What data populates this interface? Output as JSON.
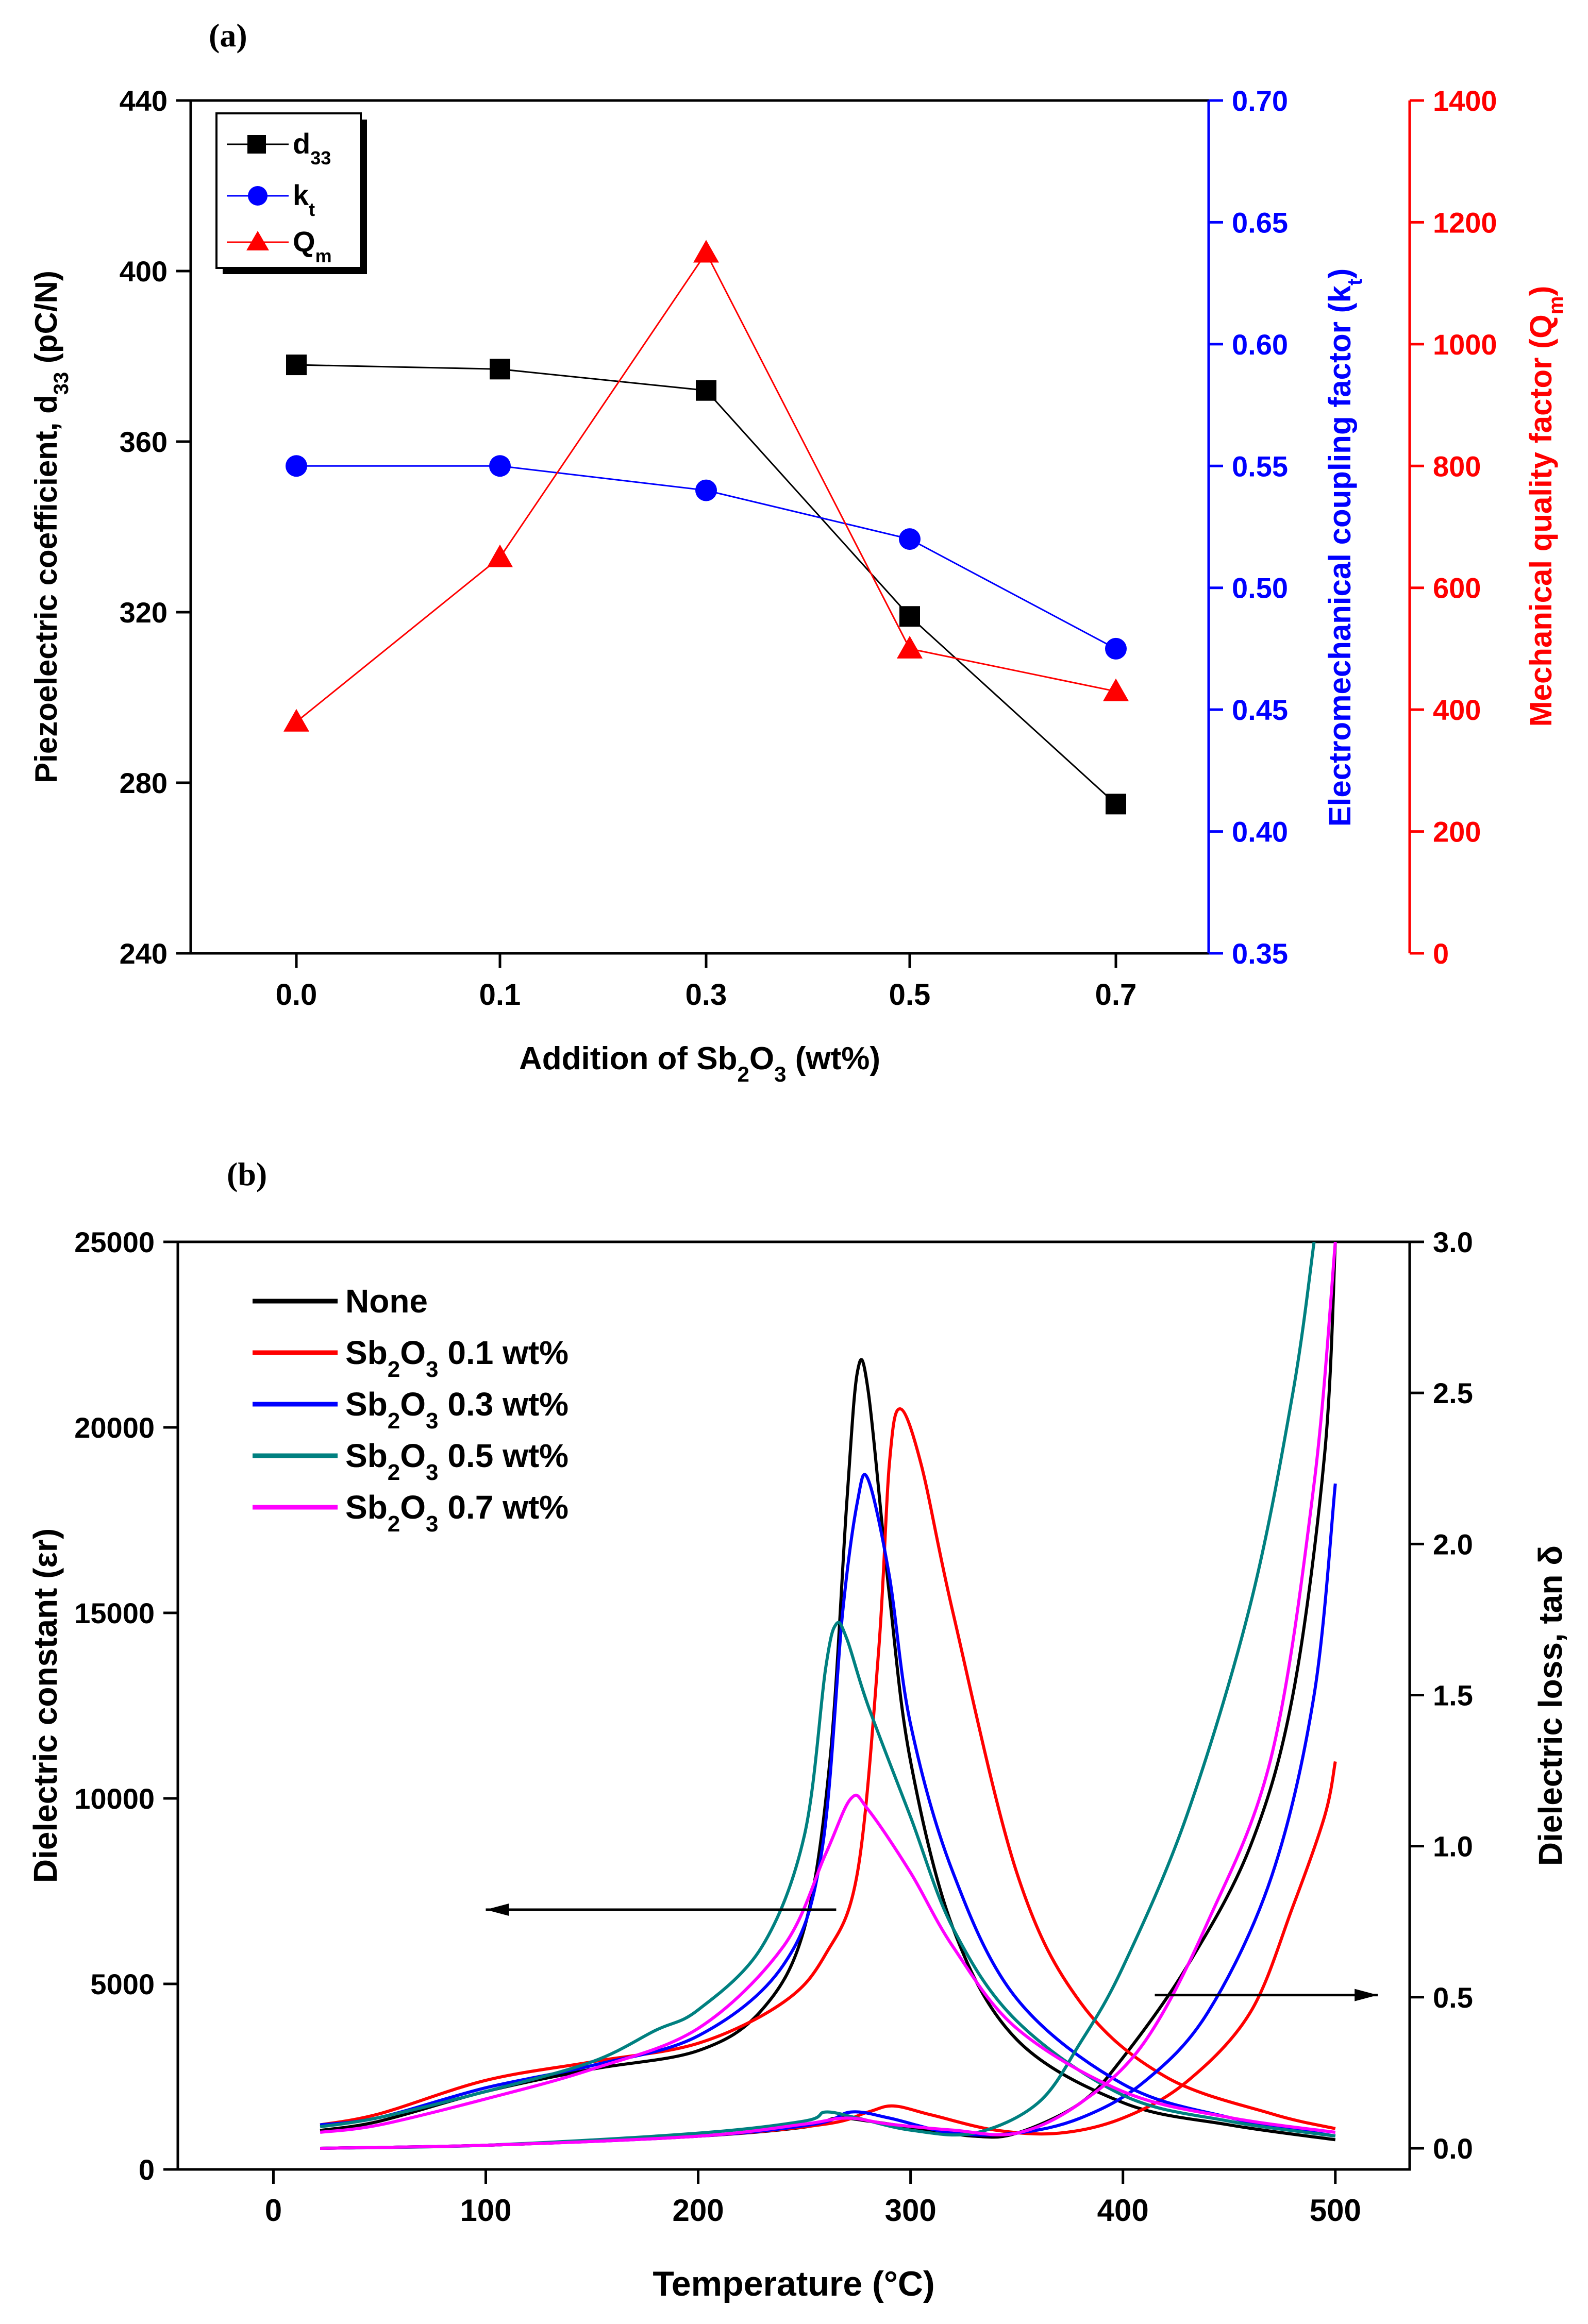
{
  "chart_data": [
    {
      "panel_label": "(a)",
      "type": "line",
      "xlabel": "Addition of Sb2O3 (wt%)",
      "x_tick_labels": [
        "0.0",
        "0.1",
        "0.3",
        "0.5",
        "0.7"
      ],
      "categories": [
        "0.0",
        "0.1",
        "0.3",
        "0.5",
        "0.7"
      ],
      "axes": {
        "left": {
          "label": "Piezoelectric coefficient, d33 (pC/N)",
          "range": [
            240,
            440
          ],
          "ticks": [
            240,
            280,
            320,
            360,
            400,
            440
          ],
          "color": "#000000"
        },
        "right1": {
          "label": "Electromechanical coupling factor (kt)",
          "range": [
            0.35,
            0.7
          ],
          "ticks": [
            "0.35",
            "0.40",
            "0.45",
            "0.50",
            "0.55",
            "0.60",
            "0.65",
            "0.70"
          ],
          "color": "#0000ff"
        },
        "right2": {
          "label": "Mechanical quality factor (Qm)",
          "range": [
            0,
            1400
          ],
          "ticks": [
            0,
            200,
            400,
            600,
            800,
            1000,
            1200,
            1400
          ],
          "color": "#ff0000"
        }
      },
      "series": [
        {
          "name": "d33",
          "axis": "left",
          "marker": "square",
          "color": "#000000",
          "values": [
            378,
            377,
            372,
            319,
            275
          ]
        },
        {
          "name": "kt",
          "axis": "right1",
          "marker": "circle",
          "color": "#0000ff",
          "values": [
            0.55,
            0.55,
            0.54,
            0.52,
            0.475
          ]
        },
        {
          "name": "Qm",
          "axis": "right2",
          "marker": "triangle",
          "color": "#ff0000",
          "values": [
            380,
            650,
            1150,
            500,
            430
          ]
        }
      ],
      "legend": {
        "position": "top-left",
        "entries": [
          "d33",
          "kt",
          "Qm"
        ]
      }
    },
    {
      "panel_label": "(b)",
      "type": "line",
      "xlabel": "Temperature (°C)",
      "ylabel": "Dielectric constant (εr)",
      "y2label": "Dielectric loss, tan δ",
      "xlim": [
        -45,
        535
      ],
      "ylim": [
        0,
        25000
      ],
      "y2lim": [
        -0.07,
        3.0
      ],
      "x_ticks": [
        0,
        100,
        200,
        300,
        400,
        500
      ],
      "y_ticks": [
        0,
        5000,
        10000,
        15000,
        20000,
        25000
      ],
      "y2_ticks": [
        "0.0",
        "0.5",
        "1.0",
        "1.5",
        "2.0",
        "2.5",
        "3.0"
      ],
      "legend": {
        "position": "top-left"
      },
      "series": [
        {
          "name": "None",
          "sub": "",
          "label_tail": "",
          "color": "#000000",
          "eps": [
            [
              22,
              1050
            ],
            [
              50,
              1300
            ],
            [
              100,
              2100
            ],
            [
              150,
              2700
            ],
            [
              200,
              3200
            ],
            [
              230,
              4300
            ],
            [
              250,
              6500
            ],
            [
              262,
              11000
            ],
            [
              270,
              18000
            ],
            [
              275,
              21500
            ],
            [
              280,
              21000
            ],
            [
              290,
              15500
            ],
            [
              300,
              11000
            ],
            [
              320,
              6500
            ],
            [
              350,
              3500
            ],
            [
              400,
              1800
            ],
            [
              450,
              1200
            ],
            [
              500,
              800
            ]
          ],
          "tan": [
            [
              22,
              0.0
            ],
            [
              100,
              0.01
            ],
            [
              200,
              0.04
            ],
            [
              250,
              0.07
            ],
            [
              265,
              0.1
            ],
            [
              280,
              0.09
            ],
            [
              300,
              0.07
            ],
            [
              330,
              0.04
            ],
            [
              350,
              0.05
            ],
            [
              380,
              0.15
            ],
            [
              400,
              0.3
            ],
            [
              430,
              0.6
            ],
            [
              460,
              1.0
            ],
            [
              480,
              1.5
            ],
            [
              495,
              2.3
            ],
            [
              500,
              3.0
            ]
          ]
        },
        {
          "name": "Sb",
          "sub": "2",
          "label_tail": "O",
          "sub2": "3",
          "wt": " 0.1 wt%",
          "color": "#ff0000",
          "eps": [
            [
              22,
              1200
            ],
            [
              50,
              1500
            ],
            [
              100,
              2400
            ],
            [
              150,
              2900
            ],
            [
              200,
              3400
            ],
            [
              240,
              4500
            ],
            [
              260,
              5800
            ],
            [
              275,
              8000
            ],
            [
              285,
              14000
            ],
            [
              290,
              19000
            ],
            [
              295,
              20500
            ],
            [
              305,
              19000
            ],
            [
              320,
              15000
            ],
            [
              350,
              8000
            ],
            [
              380,
              4500
            ],
            [
              420,
              2500
            ],
            [
              470,
              1500
            ],
            [
              500,
              1100
            ]
          ],
          "tan": [
            [
              22,
              0.0
            ],
            [
              100,
              0.01
            ],
            [
              200,
              0.04
            ],
            [
              260,
              0.08
            ],
            [
              280,
              0.12
            ],
            [
              292,
              0.14
            ],
            [
              310,
              0.11
            ],
            [
              340,
              0.06
            ],
            [
              370,
              0.05
            ],
            [
              400,
              0.1
            ],
            [
              430,
              0.22
            ],
            [
              460,
              0.45
            ],
            [
              480,
              0.8
            ],
            [
              495,
              1.1
            ],
            [
              500,
              1.28
            ]
          ]
        },
        {
          "name": "Sb",
          "sub": "2",
          "label_tail": "O",
          "sub2": "3",
          "wt": " 0.3 wt%",
          "color": "#0000ff",
          "eps": [
            [
              22,
              1200
            ],
            [
              50,
              1400
            ],
            [
              100,
              2200
            ],
            [
              150,
              2800
            ],
            [
              200,
              3600
            ],
            [
              240,
              5500
            ],
            [
              258,
              8500
            ],
            [
              268,
              15000
            ],
            [
              275,
              18000
            ],
            [
              280,
              18600
            ],
            [
              290,
              16000
            ],
            [
              300,
              12000
            ],
            [
              320,
              8000
            ],
            [
              350,
              4600
            ],
            [
              400,
              2300
            ],
            [
              450,
              1400
            ],
            [
              500,
              900
            ]
          ],
          "tan": [
            [
              22,
              0.0
            ],
            [
              100,
              0.01
            ],
            [
              200,
              0.04
            ],
            [
              255,
              0.08
            ],
            [
              272,
              0.12
            ],
            [
              290,
              0.1
            ],
            [
              320,
              0.05
            ],
            [
              350,
              0.05
            ],
            [
              380,
              0.1
            ],
            [
              410,
              0.22
            ],
            [
              440,
              0.45
            ],
            [
              470,
              0.9
            ],
            [
              490,
              1.5
            ],
            [
              500,
              2.2
            ]
          ]
        },
        {
          "name": "Sb",
          "sub": "2",
          "label_tail": "O",
          "sub2": "3",
          "wt": " 0.5 wt%",
          "color": "#008080",
          "eps": [
            [
              22,
              1150
            ],
            [
              50,
              1400
            ],
            [
              100,
              2100
            ],
            [
              150,
              2900
            ],
            [
              180,
              3750
            ],
            [
              200,
              4300
            ],
            [
              230,
              6000
            ],
            [
              250,
              9000
            ],
            [
              260,
              13500
            ],
            [
              265,
              14700
            ],
            [
              270,
              14300
            ],
            [
              280,
              12500
            ],
            [
              300,
              9500
            ],
            [
              320,
              6500
            ],
            [
              350,
              4000
            ],
            [
              400,
              2000
            ],
            [
              450,
              1300
            ],
            [
              500,
              900
            ]
          ],
          "tan": [
            [
              22,
              0.0
            ],
            [
              100,
              0.01
            ],
            [
              200,
              0.05
            ],
            [
              250,
              0.09
            ],
            [
              260,
              0.12
            ],
            [
              275,
              0.1
            ],
            [
              300,
              0.06
            ],
            [
              330,
              0.05
            ],
            [
              360,
              0.15
            ],
            [
              380,
              0.35
            ],
            [
              400,
              0.6
            ],
            [
              430,
              1.1
            ],
            [
              460,
              1.8
            ],
            [
              480,
              2.5
            ],
            [
              490,
              3.0
            ]
          ]
        },
        {
          "name": "Sb",
          "sub": "2",
          "label_tail": "O",
          "sub2": "3",
          "wt": " 0.7 wt%",
          "color": "#ff00ff",
          "eps": [
            [
              22,
              1000
            ],
            [
              50,
              1200
            ],
            [
              100,
              1900
            ],
            [
              150,
              2700
            ],
            [
              200,
              3800
            ],
            [
              240,
              6000
            ],
            [
              260,
              8500
            ],
            [
              272,
              10000
            ],
            [
              280,
              9700
            ],
            [
              300,
              8000
            ],
            [
              320,
              6000
            ],
            [
              350,
              3800
            ],
            [
              400,
              2100
            ],
            [
              450,
              1400
            ],
            [
              500,
              1000
            ]
          ],
          "tan": [
            [
              22,
              0.0
            ],
            [
              100,
              0.01
            ],
            [
              200,
              0.04
            ],
            [
              250,
              0.08
            ],
            [
              270,
              0.1
            ],
            [
              290,
              0.08
            ],
            [
              320,
              0.06
            ],
            [
              350,
              0.05
            ],
            [
              380,
              0.15
            ],
            [
              410,
              0.35
            ],
            [
              440,
              0.75
            ],
            [
              470,
              1.3
            ],
            [
              490,
              2.2
            ],
            [
              500,
              3.0
            ]
          ]
        }
      ],
      "arrows": [
        {
          "direction": "left",
          "from": [
            265,
            7000
          ],
          "to": [
            100,
            7000
          ]
        },
        {
          "direction": "right",
          "from": [
            415,
            4700
          ],
          "to": [
            520,
            4700
          ]
        }
      ]
    }
  ]
}
